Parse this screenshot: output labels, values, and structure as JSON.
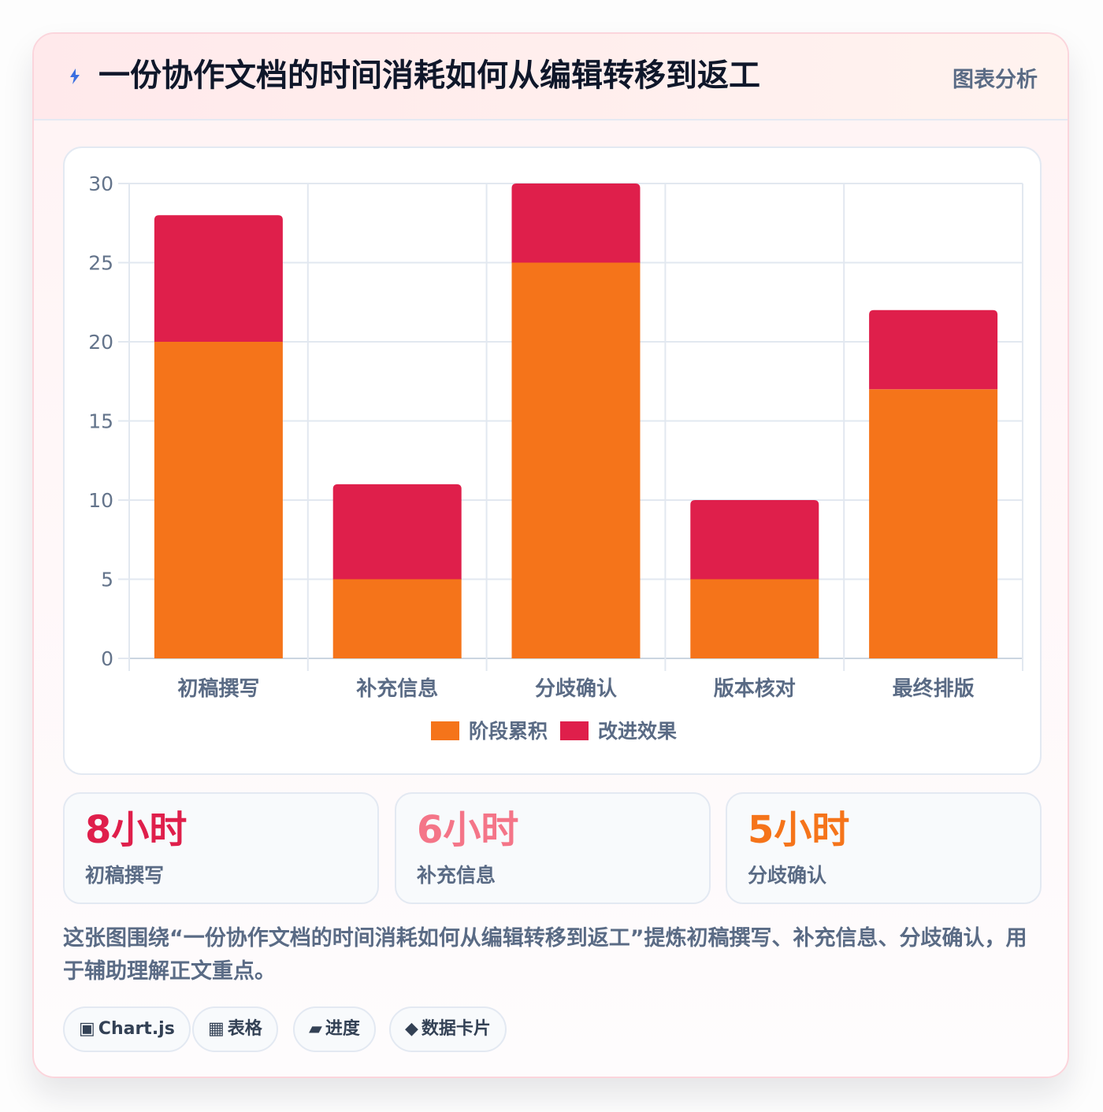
{
  "header": {
    "title": "一份协作文档的时间消耗如何从编辑转移到返工",
    "tag": "图表分析",
    "icon": "lightning-icon"
  },
  "colors": {
    "stage": "#f5741a",
    "improve": "#df1f4b",
    "stat1": "#df1f4b",
    "stat2": "#f47588",
    "stat3": "#f5741a",
    "title": "#0f172a",
    "muted": "#5a6b85"
  },
  "chart_data": {
    "type": "bar",
    "stacked": true,
    "categories": [
      "初稿撰写",
      "补充信息",
      "分歧确认",
      "版本核对",
      "最终排版"
    ],
    "series": [
      {
        "name": "阶段累积",
        "values": [
          20,
          5,
          25,
          5,
          17
        ],
        "color": "#f5741a"
      },
      {
        "name": "改进效果",
        "values": [
          8,
          6,
          5,
          5,
          5
        ],
        "color": "#df1f4b"
      }
    ],
    "ylim": [
      0,
      30
    ],
    "yticks": [
      0,
      5,
      10,
      15,
      20,
      25,
      30
    ],
    "grid": true,
    "legend": "bottom"
  },
  "stats": [
    {
      "value": "8小时",
      "label": "初稿撰写"
    },
    {
      "value": "6小时",
      "label": "补充信息"
    },
    {
      "value": "5小时",
      "label": "分歧确认"
    }
  ],
  "description": "这张图围绕“一份协作文档的时间消耗如何从编辑转移到返工”提炼初稿撰写、补充信息、分歧确认，用于辅助理解正文重点。",
  "chips": [
    {
      "icon": "▣",
      "label": "Chart.js"
    },
    {
      "icon": "▦",
      "label": "表格"
    },
    {
      "icon": "▰",
      "label": "进度"
    },
    {
      "icon": "◆",
      "label": "数据卡片"
    }
  ]
}
